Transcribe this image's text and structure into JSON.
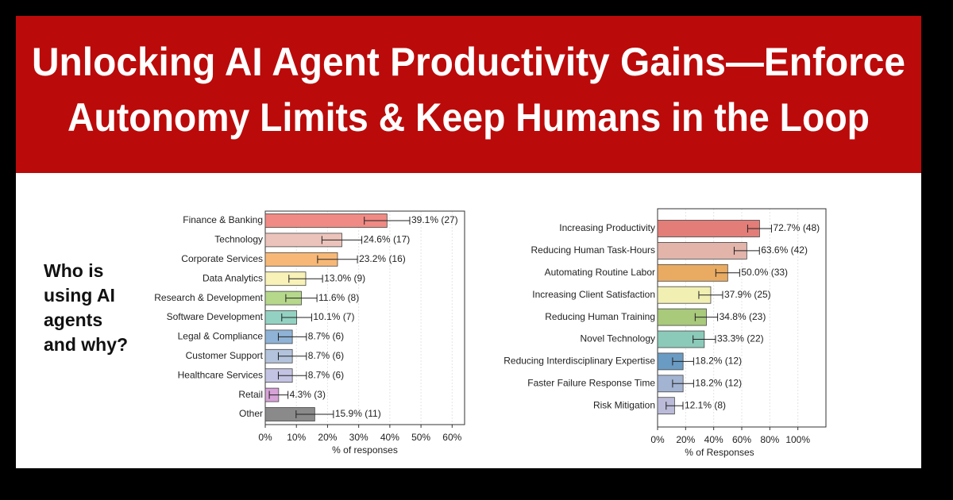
{
  "header": {
    "title_lines": [
      "Unlocking AI Agent Productivity Gains—Enforce",
      "Autonomy Limits & Keep Humans in the Loop"
    ]
  },
  "side_question": {
    "lines": [
      "Who is",
      "using AI",
      "agents",
      "and why?"
    ]
  },
  "chart_data": [
    {
      "type": "bar",
      "orientation": "horizontal",
      "x_label": "% of responses",
      "categories": [
        "Finance & Banking",
        "Technology",
        "Corporate Services",
        "Data Analytics",
        "Research & Development",
        "Software Development",
        "Legal & Compliance",
        "Customer Support",
        "Healthcare Services",
        "Retail",
        "Other"
      ],
      "values": [
        39.1,
        24.6,
        23.2,
        13.0,
        11.6,
        10.1,
        8.7,
        8.7,
        8.7,
        4.3,
        15.9
      ],
      "errors": [
        7.3,
        6.4,
        6.4,
        5.4,
        5,
        4.8,
        4.5,
        4.5,
        4.5,
        3,
        6
      ],
      "value_labels": [
        "39.1% (27)",
        "24.6% (17)",
        "23.2% (16)",
        "13.0% (9)",
        "11.6% (8)",
        "10.1% (7)",
        "8.7% (6)",
        "8.7% (6)",
        "8.7% (6)",
        "4.3% (3)",
        "15.9% (11)"
      ],
      "colors": [
        "#f08a84",
        "#ebc3ba",
        "#f7b877",
        "#f8f1b8",
        "#b6d88b",
        "#93d2c2",
        "#8fb3d6",
        "#b3c3dc",
        "#c3c3e3",
        "#d7a2d7",
        "#8a8a8a"
      ],
      "xlim": [
        0,
        64
      ],
      "xticks": [
        {
          "value": 0,
          "label": "0%"
        },
        {
          "value": 10,
          "label": "10%"
        },
        {
          "value": 20,
          "label": "20%"
        },
        {
          "value": 30,
          "label": "30%"
        },
        {
          "value": 40,
          "label": "40%"
        },
        {
          "value": 50,
          "label": "50%"
        },
        {
          "value": 60,
          "label": "60%"
        }
      ],
      "grid": true
    },
    {
      "type": "bar",
      "orientation": "horizontal",
      "x_label": "% of Responses",
      "categories": [
        "Increasing Productivity",
        "Reducing Human Task-Hours",
        "Automating Routine Labor",
        "Increasing Client Satisfaction",
        "Reducing Human Training",
        "Novel Technology",
        "Reducing Interdisciplinary Expertise",
        "Faster Failure Response Time",
        "Risk Mitigation"
      ],
      "values": [
        72.7,
        63.6,
        50.0,
        37.9,
        34.8,
        33.3,
        18.2,
        18.2,
        12.1
      ],
      "errors": [
        8.5,
        9,
        8.5,
        8.5,
        8,
        8,
        7.5,
        7.5,
        6
      ],
      "value_labels": [
        "72.7% (48)",
        "63.6% (42)",
        "50.0% (33)",
        "37.9% (25)",
        "34.8% (23)",
        "33.3% (22)",
        "18.2% (12)",
        "18.2% (12)",
        "12.1% (8)"
      ],
      "colors": [
        "#e27d78",
        "#e2b4aa",
        "#e9aa62",
        "#f2efb3",
        "#a9c97b",
        "#8bcab9",
        "#6a9bc3",
        "#a3b3d2",
        "#bbbbd9"
      ],
      "xlim": [
        0,
        120
      ],
      "xticks": [
        {
          "value": 0,
          "label": "0%"
        },
        {
          "value": 20,
          "label": "20%"
        },
        {
          "value": 40,
          "label": "40%"
        },
        {
          "value": 60,
          "label": "60%"
        },
        {
          "value": 80,
          "label": "80%"
        },
        {
          "value": 100,
          "label": "100%"
        }
      ],
      "grid": true
    }
  ]
}
